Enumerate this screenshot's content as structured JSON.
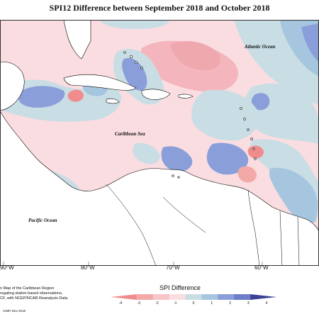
{
  "map": {
    "title": "SPI12 Difference between September 2018 and October 2018",
    "ocean_labels": {
      "atlantic": "Atlantic Ocean",
      "caribbean": "Caribbean Sea",
      "pacific": "Pacific Ocean"
    },
    "longitude_labels": [
      "90°W",
      "80°W",
      "70°W",
      "60°W"
    ]
  },
  "caption": {
    "line1": "n Map of the Caribbean Region",
    "line2": "regating station based observations,",
    "line3": "CF, with NCEP/NCAR Reanalysis Data."
  },
  "credit": "CIMH Nov 2018",
  "legend": {
    "title": "SPI Difference",
    "ticks": [
      "-4",
      "-3",
      "-2",
      "-1",
      "0",
      "1",
      "2",
      "3",
      "4"
    ],
    "colors": [
      "#f08c8c",
      "#f4a9a9",
      "#f7c4c8",
      "#fadde1",
      "#c9dde4",
      "#a6c6e0",
      "#8a9fda",
      "#6e7dc8",
      "#3b4296"
    ]
  },
  "colors": {
    "land_fill": "#ffffff",
    "coast_stroke": "#000000",
    "grid": "#9a9a9a"
  }
}
